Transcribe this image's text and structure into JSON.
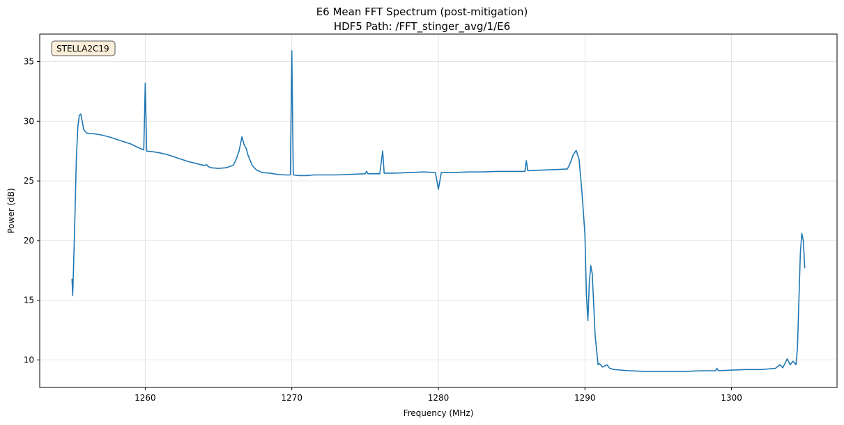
{
  "chart_data": {
    "type": "line",
    "title": "E6 Mean FFT Spectrum (post-mitigation)",
    "subtitle": "HDF5 Path: /FFT_stinger_avg/1/E6",
    "xlabel": "Frequency (MHz)",
    "ylabel": "Power (dB)",
    "xlim": [
      1252.8,
      1307.2
    ],
    "ylim": [
      7.7,
      37.3
    ],
    "xticks": [
      1260,
      1270,
      1280,
      1290,
      1300
    ],
    "yticks": [
      10,
      15,
      20,
      25,
      30,
      35
    ],
    "grid": true,
    "annotation": "STELLA2C19",
    "annotation_position": "top-left",
    "series_color": "#1f77b4",
    "series": [
      {
        "points": [
          [
            1255.0,
            16.8
          ],
          [
            1255.05,
            15.4
          ],
          [
            1255.1,
            17.5
          ],
          [
            1255.2,
            22.0
          ],
          [
            1255.3,
            27.0
          ],
          [
            1255.4,
            29.5
          ],
          [
            1255.5,
            30.5
          ],
          [
            1255.6,
            30.6
          ],
          [
            1255.7,
            30.0
          ],
          [
            1255.8,
            29.3
          ],
          [
            1256.0,
            29.0
          ],
          [
            1256.5,
            28.95
          ],
          [
            1257.0,
            28.85
          ],
          [
            1257.5,
            28.7
          ],
          [
            1258.0,
            28.5
          ],
          [
            1258.5,
            28.3
          ],
          [
            1259.0,
            28.1
          ],
          [
            1259.5,
            27.8
          ],
          [
            1259.9,
            27.6
          ],
          [
            1260.0,
            33.2
          ],
          [
            1260.1,
            27.5
          ],
          [
            1260.5,
            27.45
          ],
          [
            1261.0,
            27.35
          ],
          [
            1261.5,
            27.2
          ],
          [
            1262.0,
            27.0
          ],
          [
            1262.5,
            26.8
          ],
          [
            1263.0,
            26.6
          ],
          [
            1263.5,
            26.45
          ],
          [
            1264.0,
            26.3
          ],
          [
            1264.2,
            26.35
          ],
          [
            1264.3,
            26.2
          ],
          [
            1264.5,
            26.1
          ],
          [
            1265.0,
            26.05
          ],
          [
            1265.5,
            26.1
          ],
          [
            1266.0,
            26.3
          ],
          [
            1266.2,
            26.8
          ],
          [
            1266.4,
            27.5
          ],
          [
            1266.6,
            28.7
          ],
          [
            1266.75,
            28.0
          ],
          [
            1266.9,
            27.7
          ],
          [
            1267.0,
            27.2
          ],
          [
            1267.3,
            26.3
          ],
          [
            1267.6,
            25.9
          ],
          [
            1268.0,
            25.7
          ],
          [
            1268.5,
            25.65
          ],
          [
            1269.0,
            25.55
          ],
          [
            1269.5,
            25.5
          ],
          [
            1269.9,
            25.5
          ],
          [
            1270.0,
            35.9
          ],
          [
            1270.1,
            25.5
          ],
          [
            1270.5,
            25.45
          ],
          [
            1271.0,
            25.45
          ],
          [
            1271.5,
            25.5
          ],
          [
            1272.0,
            25.5
          ],
          [
            1273.0,
            25.5
          ],
          [
            1274.0,
            25.55
          ],
          [
            1275.0,
            25.6
          ],
          [
            1275.1,
            25.8
          ],
          [
            1275.2,
            25.6
          ],
          [
            1276.0,
            25.6
          ],
          [
            1276.2,
            27.5
          ],
          [
            1276.3,
            25.65
          ],
          [
            1277.0,
            25.65
          ],
          [
            1278.0,
            25.7
          ],
          [
            1279.0,
            25.75
          ],
          [
            1279.8,
            25.7
          ],
          [
            1280.0,
            24.3
          ],
          [
            1280.2,
            25.7
          ],
          [
            1281.0,
            25.7
          ],
          [
            1282.0,
            25.75
          ],
          [
            1283.0,
            25.75
          ],
          [
            1284.0,
            25.8
          ],
          [
            1285.0,
            25.8
          ],
          [
            1285.9,
            25.8
          ],
          [
            1286.0,
            26.7
          ],
          [
            1286.1,
            25.85
          ],
          [
            1287.0,
            25.9
          ],
          [
            1288.0,
            25.95
          ],
          [
            1288.8,
            26.0
          ],
          [
            1289.0,
            26.5
          ],
          [
            1289.2,
            27.2
          ],
          [
            1289.4,
            27.55
          ],
          [
            1289.6,
            26.8
          ],
          [
            1289.8,
            24.0
          ],
          [
            1290.0,
            20.5
          ],
          [
            1290.1,
            15.5
          ],
          [
            1290.2,
            13.3
          ],
          [
            1290.3,
            16.5
          ],
          [
            1290.4,
            17.9
          ],
          [
            1290.5,
            17.2
          ],
          [
            1290.7,
            12.0
          ],
          [
            1290.9,
            9.6
          ],
          [
            1291.0,
            9.7
          ],
          [
            1291.2,
            9.4
          ],
          [
            1291.5,
            9.6
          ],
          [
            1291.7,
            9.3
          ],
          [
            1292.0,
            9.2
          ],
          [
            1293.0,
            9.1
          ],
          [
            1294.0,
            9.05
          ],
          [
            1295.0,
            9.05
          ],
          [
            1296.0,
            9.05
          ],
          [
            1297.0,
            9.05
          ],
          [
            1298.0,
            9.1
          ],
          [
            1298.9,
            9.1
          ],
          [
            1299.0,
            9.3
          ],
          [
            1299.1,
            9.1
          ],
          [
            1300.0,
            9.15
          ],
          [
            1301.0,
            9.2
          ],
          [
            1302.0,
            9.2
          ],
          [
            1302.5,
            9.25
          ],
          [
            1303.0,
            9.3
          ],
          [
            1303.3,
            9.6
          ],
          [
            1303.5,
            9.35
          ],
          [
            1303.8,
            10.1
          ],
          [
            1304.0,
            9.6
          ],
          [
            1304.2,
            9.9
          ],
          [
            1304.4,
            9.6
          ],
          [
            1304.5,
            11.0
          ],
          [
            1304.6,
            15.0
          ],
          [
            1304.7,
            19.0
          ],
          [
            1304.8,
            20.6
          ],
          [
            1304.9,
            20.0
          ],
          [
            1305.0,
            17.7
          ]
        ]
      }
    ]
  }
}
